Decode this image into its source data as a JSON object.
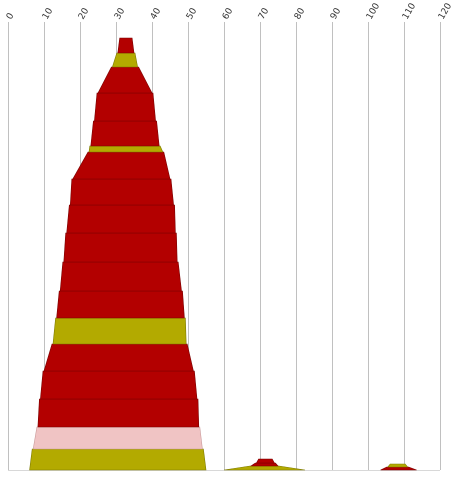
{
  "chart_data": {
    "type": "area",
    "x_axis": {
      "ticks": [
        0,
        10,
        20,
        30,
        40,
        50,
        60,
        70,
        80,
        90,
        100,
        110,
        120
      ],
      "tick_labels": [
        "0",
        "10",
        "20",
        "30",
        "40",
        "50",
        "60",
        "70",
        "80",
        "90",
        "100",
        "110",
        "120"
      ],
      "range": [
        0,
        120
      ],
      "position": "top",
      "label_rotation_deg": -60
    },
    "grid": true,
    "colors": {
      "red": "#b30000",
      "olive": "#b3aa00",
      "pink": "#f0c4c4"
    },
    "stacks": [
      {
        "name": "main",
        "layers": [
          {
            "color": "olive",
            "x_left": 6.0,
            "x_right": 55.0
          },
          {
            "color": "pink",
            "x_left": 7.0,
            "x_right": 54.0
          },
          {
            "color": "red",
            "x_left": 8.3,
            "x_right": 53.0
          },
          {
            "color": "red",
            "x_left": 9.0,
            "x_right": 52.5
          },
          {
            "color": "red",
            "x_left": 10.0,
            "x_right": 51.5
          },
          {
            "color": "olive",
            "x_left": 12.5,
            "x_right": 49.5
          },
          {
            "color": "red",
            "x_left": 13.5,
            "x_right": 49.0
          },
          {
            "color": "red",
            "x_left": 14.5,
            "x_right": 48.2
          },
          {
            "color": "red",
            "x_left": 15.5,
            "x_right": 47.0
          },
          {
            "color": "red",
            "x_left": 16.3,
            "x_right": 46.5
          },
          {
            "color": "red",
            "x_left": 17.3,
            "x_right": 46.0
          },
          {
            "color": "red",
            "x_left": 18.0,
            "x_right": 45.0
          },
          {
            "color": "olive",
            "x_left": 22.5,
            "x_right": 43.0
          },
          {
            "color": "red",
            "x_left": 23.0,
            "x_right": 42.0
          },
          {
            "color": "red",
            "x_left": 24.0,
            "x_right": 41.0
          },
          {
            "color": "red",
            "x_left": 25.0,
            "x_right": 40.0
          },
          {
            "color": "olive",
            "x_left": 29.0,
            "x_right": 36.0
          },
          {
            "color": "red",
            "x_left": 30.5,
            "x_right": 35.0
          }
        ]
      },
      {
        "name": "mid",
        "layers": [
          {
            "color": "olive",
            "x_left": 60.0,
            "x_right": 82.5
          },
          {
            "color": "red",
            "x_left": 67.5,
            "x_right": 75.0
          },
          {
            "color": "red",
            "x_left": 69.0,
            "x_right": 74.0
          }
        ]
      },
      {
        "name": "right",
        "layers": [
          {
            "color": "red",
            "x_left": 103.5,
            "x_right": 113.5
          },
          {
            "color": "olive",
            "x_left": 105.5,
            "x_right": 111.0
          }
        ]
      }
    ]
  }
}
